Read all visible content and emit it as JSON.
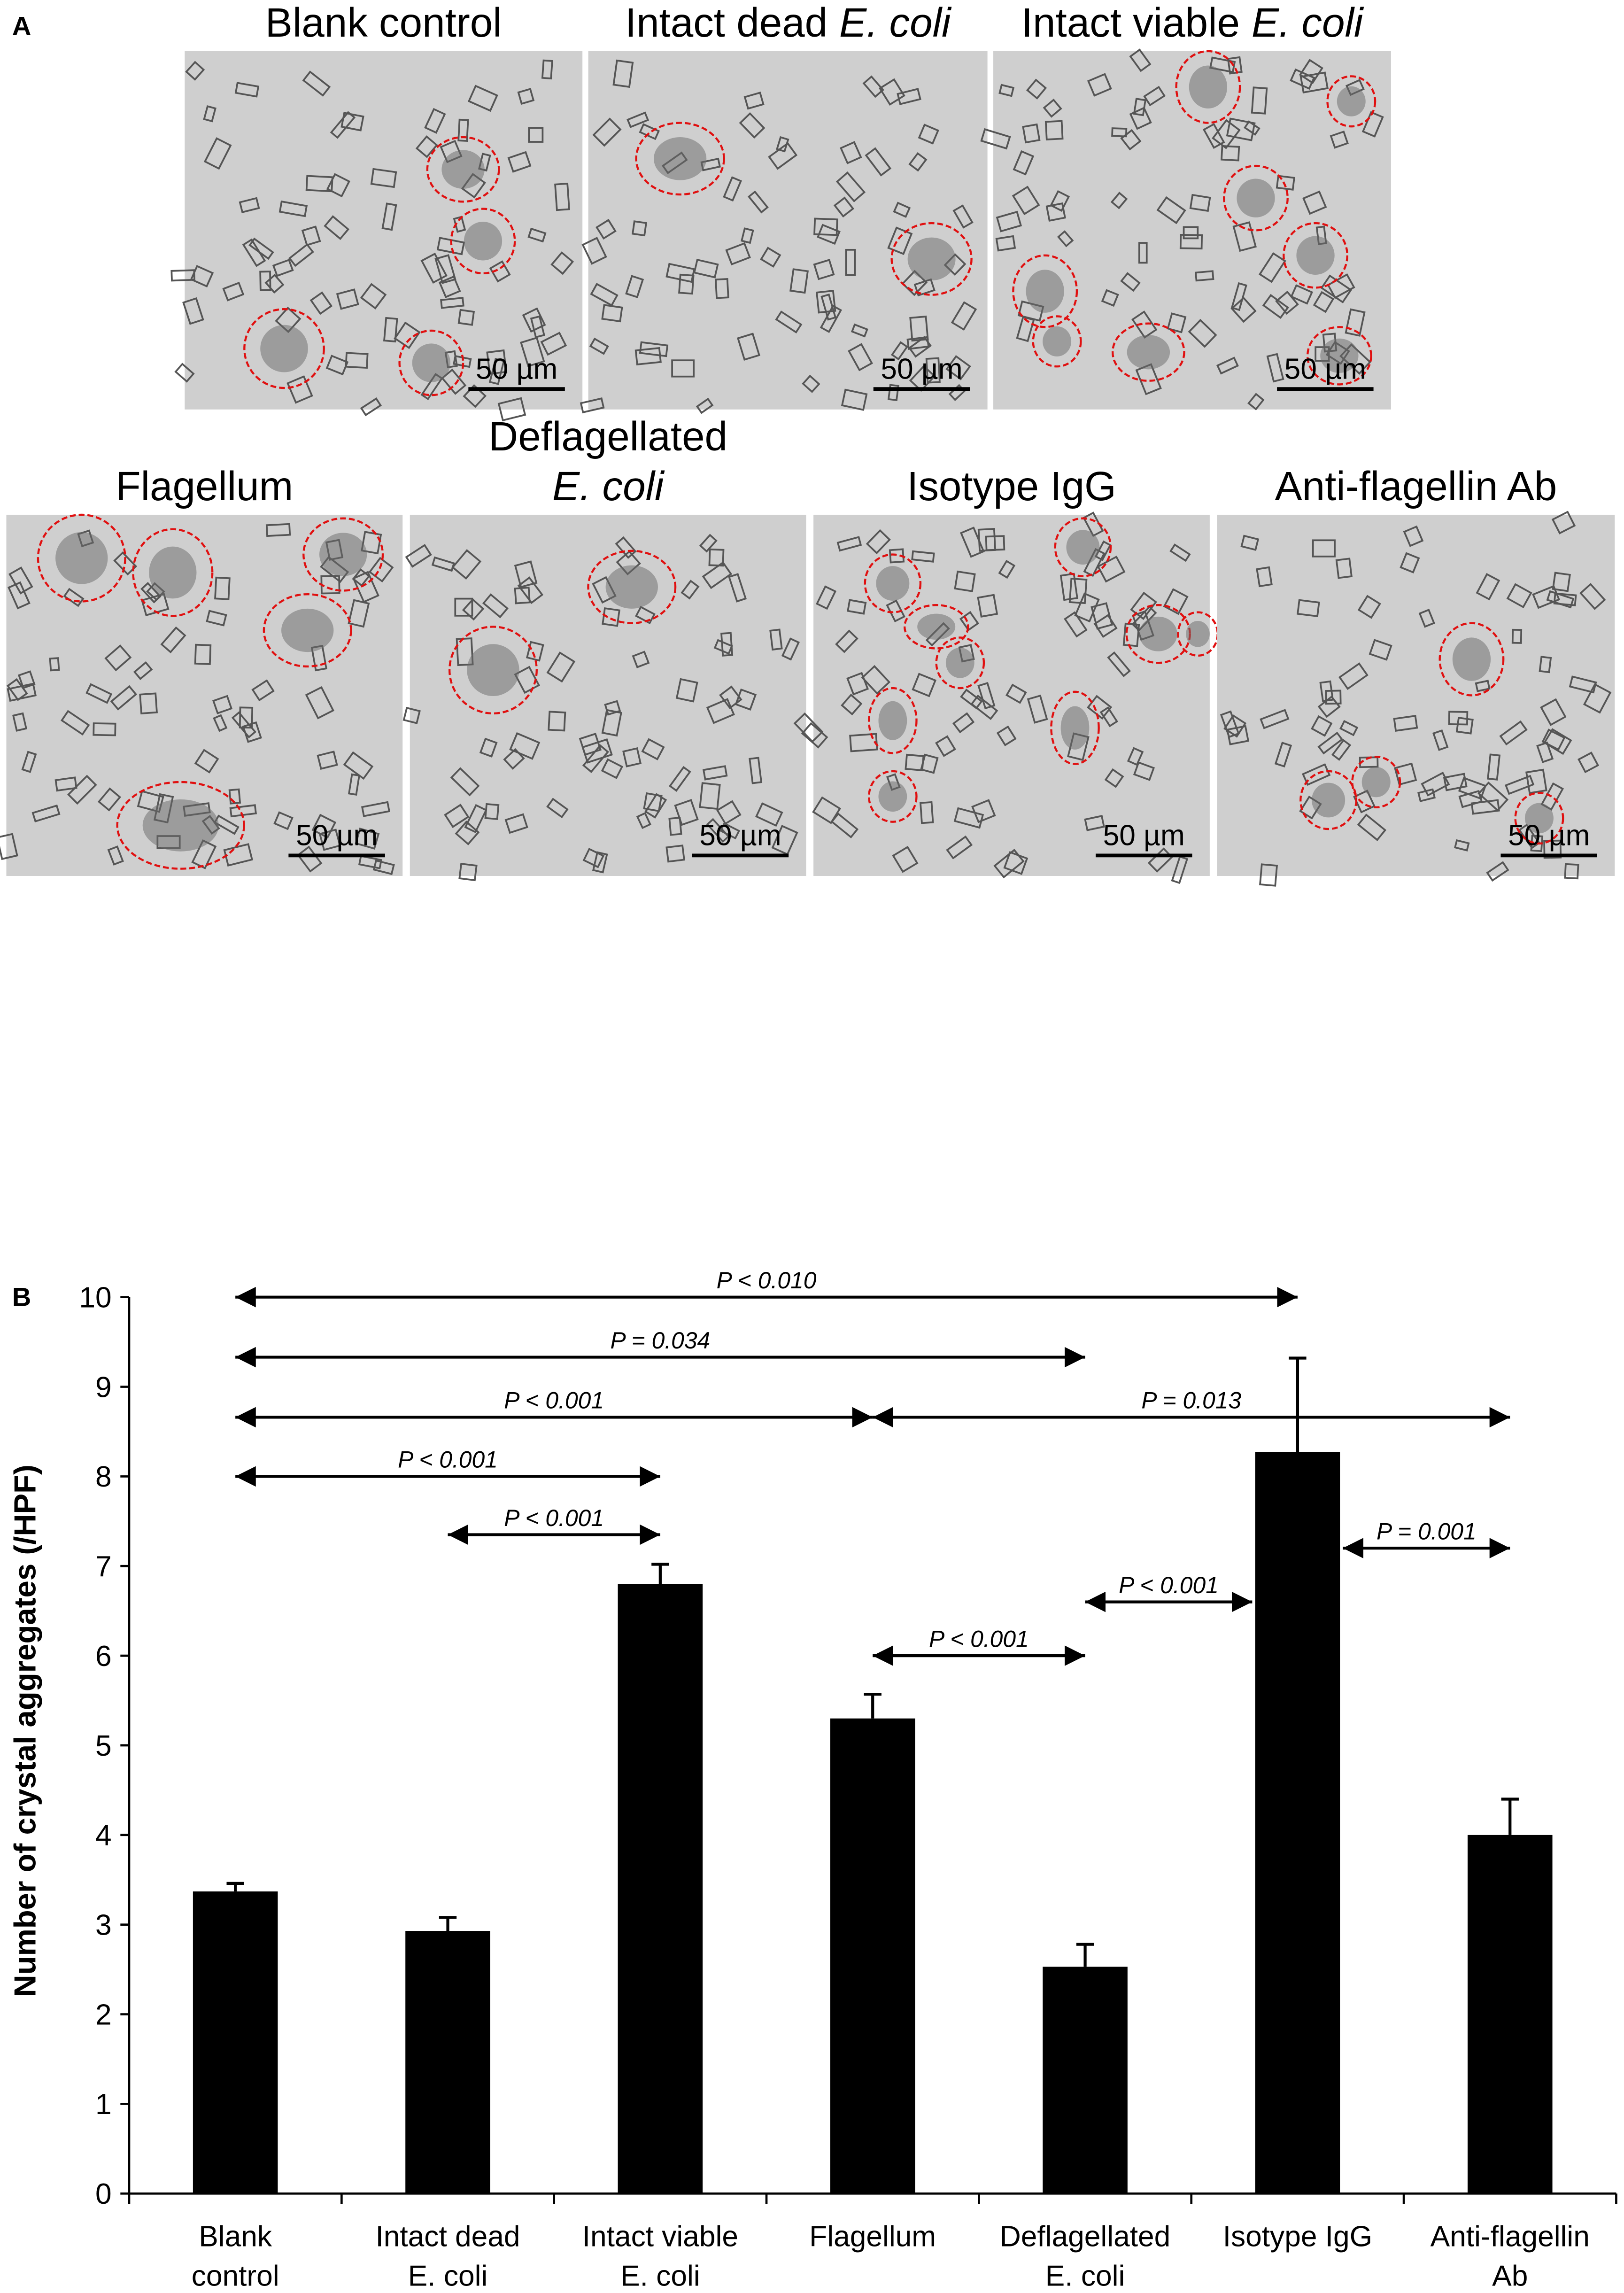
{
  "panel_a": {
    "label": "A",
    "images": [
      {
        "title": "Blank control",
        "scale_bar": "50 µm"
      },
      {
        "title": "Intact dead",
        "title_italic": "E. coli",
        "scale_bar": "50 µm"
      },
      {
        "title": "Intact viable",
        "title_italic": "E. coli",
        "scale_bar": "50 µm"
      },
      {
        "title": "Flagellum",
        "scale_bar": "50 µm"
      },
      {
        "title": "Deflagellated",
        "title_italic": "E. coli",
        "scale_bar": "50 µm"
      },
      {
        "title": "Isotype IgG",
        "scale_bar": "50 µm"
      },
      {
        "title": "Anti-flagellin Ab",
        "scale_bar": "50 µm"
      }
    ]
  },
  "chart_data": {
    "type": "bar",
    "panel_label": "B",
    "y_label": "Number of crystal aggregates (/HPF)",
    "categories": [
      [
        "Blank",
        "control"
      ],
      [
        "Intact dead",
        "E. coli"
      ],
      [
        "Intact viable",
        "E. coli"
      ],
      [
        "Flagellum"
      ],
      [
        "Deflagellated",
        "E. coli"
      ],
      [
        "Isotype IgG"
      ],
      [
        "Anti-flagellin",
        "Ab"
      ]
    ],
    "values": [
      3.37,
      2.93,
      6.8,
      5.3,
      2.53,
      8.27,
      4.0
    ],
    "errors": [
      0.09,
      0.15,
      0.22,
      0.27,
      0.25,
      1.05,
      0.4
    ],
    "color": "#000000",
    "ylim": [
      0,
      10
    ],
    "yticks": [
      0,
      1,
      2,
      3,
      4,
      5,
      6,
      7,
      8,
      9,
      10
    ],
    "comparisons": [
      {
        "from": 0,
        "to": 5,
        "y": 10.0,
        "label": "P < 0.010"
      },
      {
        "from": 0,
        "to": 4,
        "y": 9.33,
        "label": "P = 0.034"
      },
      {
        "from": 0,
        "to": 3,
        "y": 8.66,
        "label": "P < 0.001"
      },
      {
        "from": 3,
        "to": 6,
        "y": 8.66,
        "label": "P = 0.013"
      },
      {
        "from": 0,
        "to": 2,
        "y": 8.0,
        "label": "P < 0.001"
      },
      {
        "from": 1,
        "to": 2,
        "y": 7.35,
        "label": "P < 0.001"
      },
      {
        "from": 3,
        "to": 4,
        "y": 6.0,
        "label": "P < 0.001"
      },
      {
        "from": 4,
        "to": 5,
        "y": 6.6,
        "label": "P < 0.001"
      },
      {
        "from": 5,
        "to": 6,
        "y": 7.2,
        "label": "P = 0.001"
      }
    ]
  }
}
